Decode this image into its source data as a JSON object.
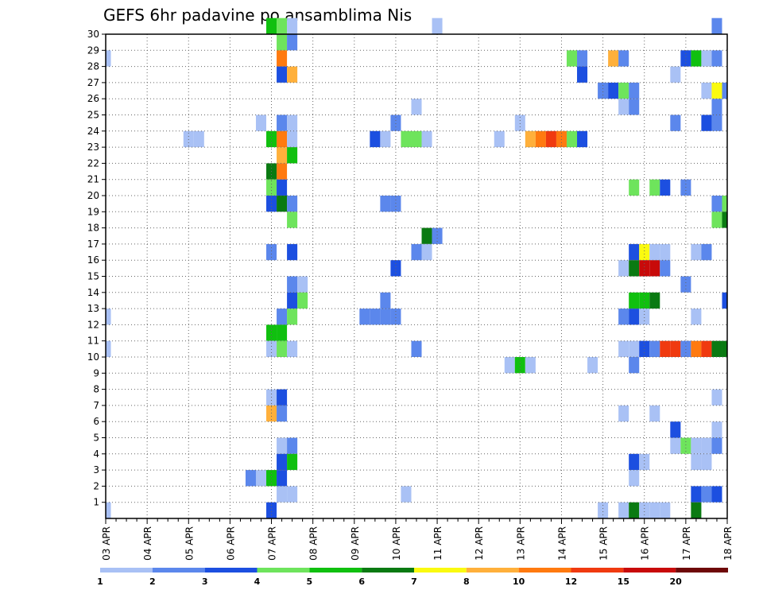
{
  "chart_data": {
    "type": "heatmap",
    "title": "GEFS 6hr padavine po ansamblima Nis",
    "xlabel": "",
    "ylabel": "",
    "x_dates": [
      "03 APR",
      "04 APR",
      "05 APR",
      "06 APR",
      "07 APR",
      "08 APR",
      "09 APR",
      "10 APR",
      "11 APR",
      "12 APR",
      "13 APR",
      "14 APR",
      "15 APR",
      "16 APR",
      "17 APR",
      "18 APR"
    ],
    "x_steps_per_day": 4,
    "y_members": [
      1,
      2,
      3,
      4,
      5,
      6,
      7,
      8,
      9,
      10,
      11,
      12,
      13,
      14,
      15,
      16,
      17,
      18,
      19,
      20,
      21,
      22,
      23,
      24,
      25,
      26,
      27,
      28,
      29,
      30
    ],
    "grid": true,
    "legend_placement": "bottom",
    "colorbar": {
      "labels": [
        "1",
        "2",
        "3",
        "4",
        "5",
        "6",
        "7",
        "8",
        "10",
        "12",
        "15",
        "20"
      ],
      "colors": [
        "#a9c1f5",
        "#5b87ec",
        "#1c4fe0",
        "#6ee45c",
        "#10c00f",
        "#0a7a12",
        "#fafa10",
        "#ffb03b",
        "#ff7a10",
        "#f03a10",
        "#c80a0a",
        "#6e0808"
      ]
    },
    "cells": [
      [
        30,
        16,
        "#10c00f"
      ],
      [
        30,
        17,
        "#6ee45c"
      ],
      [
        30,
        18,
        "#a9c1f5"
      ],
      [
        30,
        32,
        "#a9c1f5"
      ],
      [
        30,
        59,
        "#5b87ec"
      ],
      [
        29,
        17,
        "#6ee45c"
      ],
      [
        29,
        18,
        "#5b87ec"
      ],
      [
        28,
        0,
        "#a9c1f5"
      ],
      [
        28,
        17,
        "#ff7a10"
      ],
      [
        28,
        45,
        "#6ee45c"
      ],
      [
        28,
        46,
        "#5b87ec"
      ],
      [
        28,
        49,
        "#ffb03b"
      ],
      [
        28,
        50,
        "#5b87ec"
      ],
      [
        28,
        56,
        "#1c4fe0"
      ],
      [
        28,
        57,
        "#10c00f"
      ],
      [
        28,
        58,
        "#a9c1f5"
      ],
      [
        28,
        59,
        "#5b87ec"
      ],
      [
        27,
        17,
        "#1c4fe0"
      ],
      [
        27,
        18,
        "#ffb03b"
      ],
      [
        27,
        46,
        "#1c4fe0"
      ],
      [
        27,
        55,
        "#a9c1f5"
      ],
      [
        26,
        48,
        "#5b87ec"
      ],
      [
        26,
        49,
        "#1c4fe0"
      ],
      [
        26,
        50,
        "#6ee45c"
      ],
      [
        26,
        51,
        "#5b87ec"
      ],
      [
        26,
        58,
        "#a9c1f5"
      ],
      [
        26,
        59,
        "#fafa10"
      ],
      [
        26,
        60,
        "#5b87ec"
      ],
      [
        25,
        30,
        "#a9c1f5"
      ],
      [
        25,
        50,
        "#a9c1f5"
      ],
      [
        25,
        51,
        "#5b87ec"
      ],
      [
        25,
        59,
        "#5b87ec"
      ],
      [
        24,
        15,
        "#a9c1f5"
      ],
      [
        24,
        17,
        "#5b87ec"
      ],
      [
        24,
        18,
        "#a9c1f5"
      ],
      [
        24,
        28,
        "#5b87ec"
      ],
      [
        24,
        40,
        "#a9c1f5"
      ],
      [
        24,
        55,
        "#5b87ec"
      ],
      [
        24,
        58,
        "#1c4fe0"
      ],
      [
        24,
        59,
        "#5b87ec"
      ],
      [
        23,
        8,
        "#a9c1f5"
      ],
      [
        23,
        9,
        "#a9c1f5"
      ],
      [
        23,
        16,
        "#10c00f"
      ],
      [
        23,
        17,
        "#ff7a10"
      ],
      [
        23,
        18,
        "#a9c1f5"
      ],
      [
        23,
        26,
        "#1c4fe0"
      ],
      [
        23,
        27,
        "#a9c1f5"
      ],
      [
        23,
        29,
        "#6ee45c"
      ],
      [
        23,
        30,
        "#6ee45c"
      ],
      [
        23,
        31,
        "#a9c1f5"
      ],
      [
        23,
        38,
        "#a9c1f5"
      ],
      [
        23,
        41,
        "#ffb03b"
      ],
      [
        23,
        42,
        "#ff7a10"
      ],
      [
        23,
        43,
        "#f03a10"
      ],
      [
        23,
        44,
        "#ff7a10"
      ],
      [
        23,
        45,
        "#6ee45c"
      ],
      [
        23,
        46,
        "#1c4fe0"
      ],
      [
        22,
        17,
        "#ffb03b"
      ],
      [
        22,
        18,
        "#10c00f"
      ],
      [
        21,
        16,
        "#0a7a12"
      ],
      [
        21,
        17,
        "#ff7a10"
      ],
      [
        20,
        16,
        "#6ee45c"
      ],
      [
        20,
        17,
        "#1c4fe0"
      ],
      [
        20,
        51,
        "#6ee45c"
      ],
      [
        20,
        53,
        "#6ee45c"
      ],
      [
        20,
        54,
        "#1c4fe0"
      ],
      [
        20,
        56,
        "#5b87ec"
      ],
      [
        19,
        16,
        "#1c4fe0"
      ],
      [
        19,
        17,
        "#0a7a12"
      ],
      [
        19,
        18,
        "#5b87ec"
      ],
      [
        19,
        27,
        "#5b87ec"
      ],
      [
        19,
        28,
        "#5b87ec"
      ],
      [
        19,
        59,
        "#5b87ec"
      ],
      [
        19,
        60,
        "#6ee45c"
      ],
      [
        18,
        18,
        "#6ee45c"
      ],
      [
        18,
        59,
        "#6ee45c"
      ],
      [
        18,
        60,
        "#0a7a12"
      ],
      [
        17,
        31,
        "#0a7a12"
      ],
      [
        17,
        32,
        "#5b87ec"
      ],
      [
        16,
        16,
        "#5b87ec"
      ],
      [
        16,
        18,
        "#1c4fe0"
      ],
      [
        16,
        30,
        "#5b87ec"
      ],
      [
        16,
        31,
        "#a9c1f5"
      ],
      [
        16,
        51,
        "#1c4fe0"
      ],
      [
        16,
        52,
        "#fafa10"
      ],
      [
        16,
        53,
        "#a9c1f5"
      ],
      [
        16,
        54,
        "#a9c1f5"
      ],
      [
        16,
        57,
        "#a9c1f5"
      ],
      [
        16,
        58,
        "#5b87ec"
      ],
      [
        15,
        28,
        "#1c4fe0"
      ],
      [
        15,
        50,
        "#a9c1f5"
      ],
      [
        15,
        51,
        "#0a7a12"
      ],
      [
        15,
        52,
        "#c80a0a"
      ],
      [
        15,
        53,
        "#c80a0a"
      ],
      [
        15,
        54,
        "#5b87ec"
      ],
      [
        14,
        18,
        "#5b87ec"
      ],
      [
        14,
        19,
        "#a9c1f5"
      ],
      [
        14,
        56,
        "#5b87ec"
      ],
      [
        13,
        18,
        "#1c4fe0"
      ],
      [
        13,
        19,
        "#6ee45c"
      ],
      [
        13,
        27,
        "#5b87ec"
      ],
      [
        13,
        51,
        "#10c00f"
      ],
      [
        13,
        52,
        "#10c00f"
      ],
      [
        13,
        53,
        "#0a7a12"
      ],
      [
        13,
        60,
        "#1c4fe0"
      ],
      [
        12,
        0,
        "#a9c1f5"
      ],
      [
        12,
        17,
        "#5b87ec"
      ],
      [
        12,
        18,
        "#6ee45c"
      ],
      [
        12,
        25,
        "#5b87ec"
      ],
      [
        12,
        26,
        "#5b87ec"
      ],
      [
        12,
        27,
        "#5b87ec"
      ],
      [
        12,
        28,
        "#5b87ec"
      ],
      [
        12,
        50,
        "#5b87ec"
      ],
      [
        12,
        51,
        "#1c4fe0"
      ],
      [
        12,
        52,
        "#a9c1f5"
      ],
      [
        12,
        57,
        "#a9c1f5"
      ],
      [
        11,
        16,
        "#10c00f"
      ],
      [
        11,
        17,
        "#10c00f"
      ],
      [
        10,
        0,
        "#a9c1f5"
      ],
      [
        10,
        16,
        "#a9c1f5"
      ],
      [
        10,
        17,
        "#6ee45c"
      ],
      [
        10,
        18,
        "#a9c1f5"
      ],
      [
        10,
        30,
        "#5b87ec"
      ],
      [
        10,
        50,
        "#a9c1f5"
      ],
      [
        10,
        51,
        "#a9c1f5"
      ],
      [
        10,
        52,
        "#1c4fe0"
      ],
      [
        10,
        53,
        "#5b87ec"
      ],
      [
        10,
        54,
        "#f03a10"
      ],
      [
        10,
        55,
        "#f03a10"
      ],
      [
        10,
        56,
        "#5b87ec"
      ],
      [
        10,
        57,
        "#ff7a10"
      ],
      [
        10,
        58,
        "#f03a10"
      ],
      [
        10,
        59,
        "#0a7a12"
      ],
      [
        10,
        60,
        "#0a7a12"
      ],
      [
        9,
        39,
        "#a9c1f5"
      ],
      [
        9,
        40,
        "#10c00f"
      ],
      [
        9,
        41,
        "#a9c1f5"
      ],
      [
        9,
        47,
        "#a9c1f5"
      ],
      [
        9,
        51,
        "#5b87ec"
      ],
      [
        7,
        16,
        "#a9c1f5"
      ],
      [
        7,
        17,
        "#1c4fe0"
      ],
      [
        7,
        59,
        "#a9c1f5"
      ],
      [
        6,
        16,
        "#ffb03b"
      ],
      [
        6,
        17,
        "#5b87ec"
      ],
      [
        6,
        50,
        "#a9c1f5"
      ],
      [
        6,
        53,
        "#a9c1f5"
      ],
      [
        5,
        55,
        "#1c4fe0"
      ],
      [
        5,
        59,
        "#a9c1f5"
      ],
      [
        4,
        17,
        "#a9c1f5"
      ],
      [
        4,
        18,
        "#5b87ec"
      ],
      [
        4,
        55,
        "#a9c1f5"
      ],
      [
        4,
        56,
        "#6ee45c"
      ],
      [
        4,
        57,
        "#a9c1f5"
      ],
      [
        4,
        58,
        "#a9c1f5"
      ],
      [
        4,
        59,
        "#5b87ec"
      ],
      [
        3,
        17,
        "#1c4fe0"
      ],
      [
        3,
        18,
        "#10c00f"
      ],
      [
        3,
        51,
        "#1c4fe0"
      ],
      [
        3,
        52,
        "#a9c1f5"
      ],
      [
        3,
        57,
        "#a9c1f5"
      ],
      [
        3,
        58,
        "#a9c1f5"
      ],
      [
        2,
        14,
        "#5b87ec"
      ],
      [
        2,
        15,
        "#a9c1f5"
      ],
      [
        2,
        16,
        "#10c00f"
      ],
      [
        2,
        17,
        "#1c4fe0"
      ],
      [
        2,
        51,
        "#a9c1f5"
      ],
      [
        1,
        17,
        "#a9c1f5"
      ],
      [
        1,
        18,
        "#a9c1f5"
      ],
      [
        1,
        29,
        "#a9c1f5"
      ],
      [
        1,
        57,
        "#1c4fe0"
      ],
      [
        1,
        58,
        "#5b87ec"
      ],
      [
        1,
        59,
        "#1c4fe0"
      ],
      [
        0,
        0,
        "#a9c1f5"
      ],
      [
        0,
        16,
        "#1c4fe0"
      ],
      [
        0,
        48,
        "#a9c1f5"
      ],
      [
        0,
        50,
        "#a9c1f5"
      ],
      [
        0,
        51,
        "#0a7a12"
      ],
      [
        0,
        52,
        "#a9c1f5"
      ],
      [
        0,
        53,
        "#a9c1f5"
      ],
      [
        0,
        54,
        "#a9c1f5"
      ],
      [
        0,
        57,
        "#0a7a12"
      ]
    ]
  }
}
